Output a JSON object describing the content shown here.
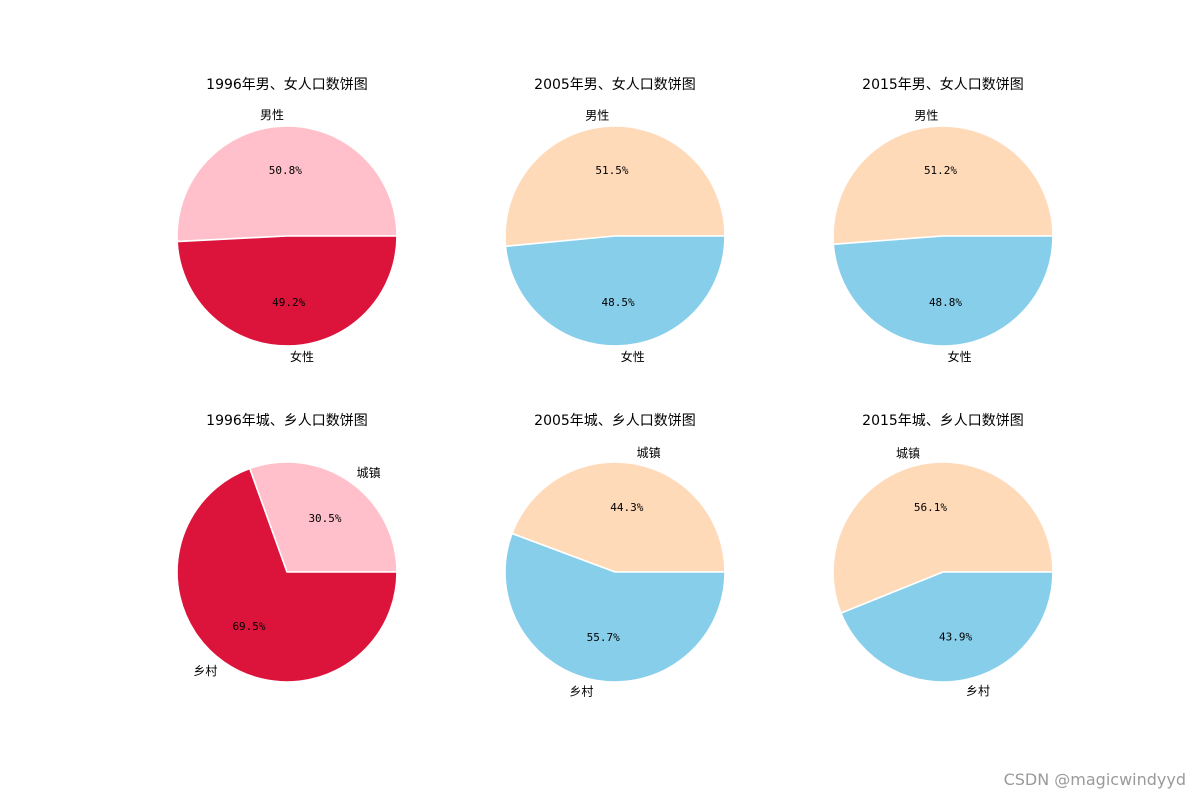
{
  "watermark": "CSDN @magicwindyyd",
  "chart_data": [
    {
      "type": "pie",
      "title": "1996年男、女人口数饼图",
      "labels": [
        "男性",
        "女性"
      ],
      "values": [
        50.8,
        49.2
      ],
      "pct_labels": [
        "50.8%",
        "49.2%"
      ],
      "colors": [
        "#FFC0CB",
        "#DC143C"
      ]
    },
    {
      "type": "pie",
      "title": "2005年男、女人口数饼图",
      "labels": [
        "男性",
        "女性"
      ],
      "values": [
        51.5,
        48.5
      ],
      "pct_labels": [
        "51.5%",
        "48.5%"
      ],
      "colors": [
        "#FFDAB9",
        "#87CEEB"
      ]
    },
    {
      "type": "pie",
      "title": "2015年男、女人口数饼图",
      "labels": [
        "男性",
        "女性"
      ],
      "values": [
        51.2,
        48.8
      ],
      "pct_labels": [
        "51.2%",
        "48.8%"
      ],
      "colors": [
        "#FFDAB9",
        "#87CEEB"
      ]
    },
    {
      "type": "pie",
      "title": "1996年城、乡人口数饼图",
      "labels": [
        "城镇",
        "乡村"
      ],
      "values": [
        30.5,
        69.5
      ],
      "pct_labels": [
        "30.5%",
        "69.5%"
      ],
      "colors": [
        "#FFC0CB",
        "#DC143C"
      ]
    },
    {
      "type": "pie",
      "title": "2005年城、乡人口数饼图",
      "labels": [
        "城镇",
        "乡村"
      ],
      "values": [
        44.3,
        55.7
      ],
      "pct_labels": [
        "44.3%",
        "55.7%"
      ],
      "colors": [
        "#FFDAB9",
        "#87CEEB"
      ]
    },
    {
      "type": "pie",
      "title": "2015年城、乡人口数饼图",
      "labels": [
        "城镇",
        "乡村"
      ],
      "values": [
        56.1,
        43.9
      ],
      "pct_labels": [
        "56.1%",
        "43.9%"
      ],
      "colors": [
        "#FFDAB9",
        "#87CEEB"
      ]
    }
  ]
}
